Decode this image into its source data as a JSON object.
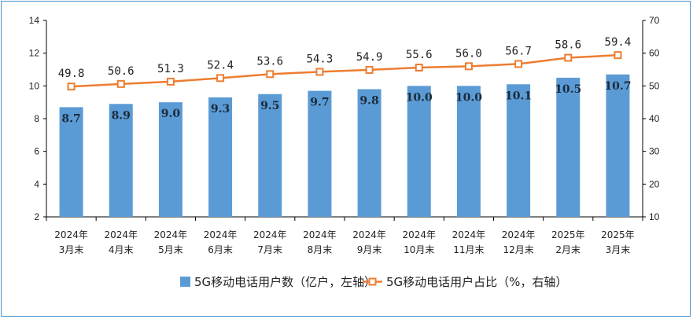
{
  "chart_data": {
    "type": "bar",
    "categories": [
      [
        "2024年",
        "3月末"
      ],
      [
        "2024年",
        "4月末"
      ],
      [
        "2024年",
        "5月末"
      ],
      [
        "2024年",
        "6月末"
      ],
      [
        "2024年",
        "7月末"
      ],
      [
        "2024年",
        "8月末"
      ],
      [
        "2024年",
        "9月末"
      ],
      [
        "2024年",
        "10月末"
      ],
      [
        "2024年",
        "11月末"
      ],
      [
        "2024年",
        "12月末"
      ],
      [
        "2025年",
        "2月末"
      ],
      [
        "2025年",
        "3月末"
      ]
    ],
    "series": [
      {
        "name": "5G移动电话用户数（亿户，左轴）",
        "type": "bar",
        "axis": "left",
        "color": "#5b9bd5",
        "values": [
          8.7,
          8.9,
          9.0,
          9.3,
          9.5,
          9.7,
          9.8,
          10.0,
          10.0,
          10.1,
          10.5,
          10.7
        ],
        "labels": [
          "8.7",
          "8.9",
          "9.0",
          "9.3",
          "9.5",
          "9.7",
          "9.8",
          "10.0",
          "10.0",
          "10.1",
          "10.5",
          "10.7"
        ]
      },
      {
        "name": "5G移动电话用户占比（%，右轴）",
        "type": "line",
        "axis": "right",
        "color": "#ed7d31",
        "values": [
          49.8,
          50.6,
          51.3,
          52.4,
          53.6,
          54.3,
          54.9,
          55.6,
          56.0,
          56.7,
          58.6,
          59.4
        ],
        "labels": [
          "49.8",
          "50.6",
          "51.3",
          "52.4",
          "53.6",
          "54.3",
          "54.9",
          "55.6",
          "56.0",
          "56.7",
          "58.6",
          "59.4"
        ]
      }
    ],
    "y_left": {
      "min": 2,
      "max": 14,
      "ticks": [
        "2",
        "4",
        "6",
        "8",
        "10",
        "12",
        "14"
      ]
    },
    "y_right": {
      "min": 10,
      "max": 70,
      "ticks": [
        "10",
        "20",
        "30",
        "40",
        "50",
        "60",
        "70"
      ]
    },
    "legend_position": "bottom"
  }
}
